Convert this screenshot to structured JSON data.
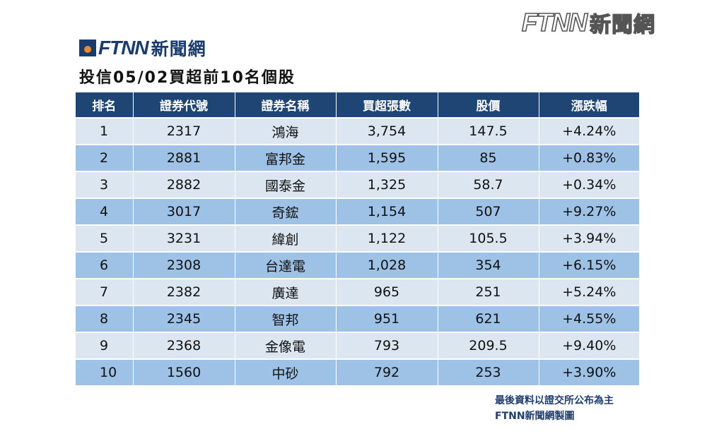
{
  "watermark": {
    "brand": "FTNN",
    "brand_cn": "新聞網"
  },
  "logo": {
    "brand": "FTNN",
    "brand_cn": "新聞網"
  },
  "title": "投信05/02買超前10名個股",
  "table": {
    "headers": [
      "排名",
      "證券代號",
      "證券名稱",
      "買超張數",
      "股價",
      "漲跌幅"
    ],
    "rows": [
      [
        "1",
        "2317",
        "鴻海",
        "3,754",
        "147.5",
        "+4.24%"
      ],
      [
        "2",
        "2881",
        "富邦金",
        "1,595",
        "85",
        "+0.83%"
      ],
      [
        "3",
        "2882",
        "國泰金",
        "1,325",
        "58.7",
        "+0.34%"
      ],
      [
        "4",
        "3017",
        "奇鋐",
        "1,154",
        "507",
        "+9.27%"
      ],
      [
        "5",
        "3231",
        "緯創",
        "1,122",
        "105.5",
        "+3.94%"
      ],
      [
        "6",
        "2308",
        "台達電",
        "1,028",
        "354",
        "+6.15%"
      ],
      [
        "7",
        "2382",
        "廣達",
        "965",
        "251",
        "+5.24%"
      ],
      [
        "8",
        "2345",
        "智邦",
        "951",
        "621",
        "+4.55%"
      ],
      [
        "9",
        "2368",
        "金像電",
        "793",
        "209.5",
        "+9.40%"
      ],
      [
        "10",
        "1560",
        "中砂",
        "792",
        "253",
        "+3.90%"
      ]
    ]
  },
  "footer": {
    "line1": "最後資料以證交所公布為主",
    "line2": "FTNN新聞網製圖"
  },
  "colors": {
    "header_bg": "#1f4574",
    "row_light": "#dce6f1",
    "row_dark": "#9ec1e6",
    "brand_navy": "#1a3b6e",
    "brand_orange": "#e8892c"
  }
}
